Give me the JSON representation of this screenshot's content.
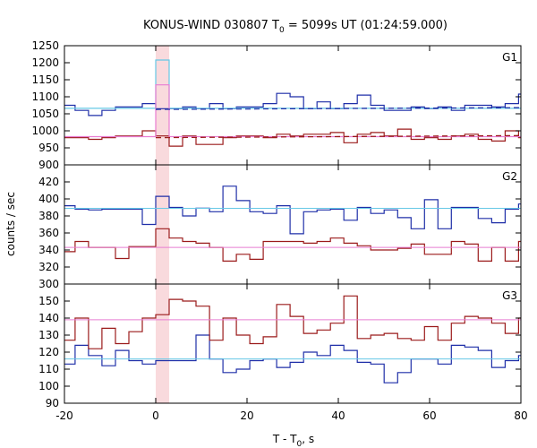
{
  "title": {
    "main": "KONUS-WIND 030807 T",
    "sub": "0",
    "rest": " = 5099s UT (01:24:59.000)"
  },
  "xlabel": {
    "main": "T - T",
    "sub": "0",
    "rest": ", s"
  },
  "ylabel": "counts / sec",
  "colors": {
    "blue_step": "#1f2fa8",
    "red_step": "#9b1b1b",
    "light_blue": "#66c8e6",
    "pink": "#e87dd2",
    "highlight": "#f9dadd",
    "dashed_blue": "#1f2fa8",
    "dashed_red": "#9b1b1b"
  },
  "chart_data": [
    {
      "type": "line",
      "panel": "G1",
      "xlim": [
        -20,
        80
      ],
      "ylim": [
        900,
        1250
      ],
      "yticks": [
        900,
        950,
        1000,
        1050,
        1100,
        1150,
        1200,
        1250
      ],
      "xticks": [
        -20,
        0,
        20,
        40,
        60,
        80
      ],
      "highlight_x": [
        0,
        2.944
      ],
      "bin_edges": [
        -20.608,
        -17.664,
        -14.72,
        -11.776,
        -8.832,
        -5.888,
        -2.944,
        0,
        2.944,
        5.888,
        8.832,
        11.776,
        14.72,
        17.664,
        20.608,
        23.552,
        26.496,
        29.44,
        32.384,
        35.328,
        38.272,
        41.216,
        44.16,
        47.104,
        50.048,
        52.992,
        55.936,
        58.88,
        61.824,
        64.768,
        67.712,
        70.656,
        73.6,
        76.544,
        79.488,
        82.432
      ],
      "series": [
        {
          "name": "",
          "style": "step",
          "color": "blue_step",
          "values": [
            1075,
            1060,
            1045,
            1060,
            1070,
            1070,
            1080,
            1065,
            1065,
            1070,
            1065,
            1080,
            1065,
            1070,
            1070,
            1080,
            1110,
            1100,
            1065,
            1085,
            1065,
            1080,
            1105,
            1075,
            1060,
            1060,
            1070,
            1065,
            1070,
            1060,
            1075,
            1075,
            1070,
            1080,
            1108,
            1035
          ]
        },
        {
          "name": "",
          "style": "step",
          "color": "red_step",
          "values": [
            980,
            980,
            975,
            980,
            985,
            985,
            1000,
            985,
            955,
            985,
            960,
            960,
            980,
            985,
            985,
            980,
            990,
            985,
            990,
            990,
            995,
            965,
            990,
            995,
            985,
            1005,
            975,
            980,
            975,
            985,
            990,
            975,
            970,
            1000,
            980,
            965
          ]
        },
        {
          "name": "",
          "style": "step",
          "color": "light_blue",
          "values": [
            1066,
            1066,
            1066,
            1066,
            1066,
            1066,
            1066,
            1208,
            1066,
            1066,
            1066,
            1066,
            1066,
            1066,
            1066,
            1066,
            1066,
            1066,
            1066,
            1066,
            1066,
            1066,
            1066,
            1066,
            1066,
            1066,
            1066,
            1066,
            1066,
            1066,
            1066,
            1066,
            1066,
            1066,
            1066,
            1066
          ]
        },
        {
          "name": "",
          "style": "step",
          "color": "pink",
          "values": [
            983,
            983,
            983,
            983,
            983,
            983,
            983,
            1135,
            983,
            983,
            983,
            983,
            983,
            983,
            983,
            983,
            983,
            983,
            983,
            983,
            983,
            983,
            983,
            983,
            983,
            983,
            983,
            983,
            983,
            983,
            983,
            983,
            983,
            983,
            983,
            983
          ]
        },
        {
          "name": "",
          "style": "dashed",
          "color": "dashed_blue",
          "x": [
            0,
            80
          ],
          "y": [
            1063,
            1068
          ]
        },
        {
          "name": "",
          "style": "dashed",
          "color": "dashed_red",
          "x": [
            0,
            80
          ],
          "y": [
            980,
            986
          ]
        }
      ]
    },
    {
      "type": "line",
      "panel": "G2",
      "xlim": [
        -20,
        80
      ],
      "ylim": [
        300,
        440
      ],
      "yticks": [
        300,
        320,
        340,
        360,
        380,
        400,
        420
      ],
      "xticks": [
        -20,
        0,
        20,
        40,
        60,
        80
      ],
      "highlight_x": [
        0,
        2.944
      ],
      "bin_edges": [
        -20.608,
        -17.664,
        -14.72,
        -11.776,
        -8.832,
        -5.888,
        -2.944,
        0,
        2.944,
        5.888,
        8.832,
        11.776,
        14.72,
        17.664,
        20.608,
        23.552,
        26.496,
        29.44,
        32.384,
        35.328,
        38.272,
        41.216,
        44.16,
        47.104,
        50.048,
        52.992,
        55.936,
        58.88,
        61.824,
        64.768,
        67.712,
        70.656,
        73.6,
        76.544,
        79.488,
        82.432
      ],
      "series": [
        {
          "name": "",
          "style": "step",
          "color": "blue_step",
          "values": [
            392,
            388,
            387,
            388,
            388,
            388,
            370,
            403,
            390,
            380,
            389,
            385,
            415,
            398,
            385,
            383,
            392,
            359,
            385,
            387,
            388,
            375,
            390,
            383,
            387,
            378,
            365,
            399,
            365,
            390,
            390,
            377,
            372,
            388,
            394,
            385
          ]
        },
        {
          "name": "",
          "style": "step",
          "color": "red_step",
          "values": [
            338,
            350,
            343,
            343,
            330,
            344,
            344,
            365,
            354,
            350,
            348,
            343,
            327,
            335,
            329,
            350,
            350,
            350,
            348,
            350,
            354,
            348,
            345,
            340,
            340,
            342,
            347,
            335,
            335,
            350,
            347,
            327,
            343,
            327,
            350,
            340
          ]
        },
        {
          "name": "",
          "style": "hline",
          "color": "light_blue",
          "y": 389
        },
        {
          "name": "",
          "style": "hline",
          "color": "pink",
          "y": 343
        }
      ]
    },
    {
      "type": "line",
      "panel": "G3",
      "xlim": [
        -20,
        80
      ],
      "ylim": [
        90,
        160
      ],
      "yticks": [
        90,
        100,
        110,
        120,
        130,
        140,
        150
      ],
      "xticks": [
        -20,
        0,
        20,
        40,
        60,
        80
      ],
      "highlight_x": [
        0,
        2.944
      ],
      "bin_edges": [
        -20.608,
        -17.664,
        -14.72,
        -11.776,
        -8.832,
        -5.888,
        -2.944,
        0,
        2.944,
        5.888,
        8.832,
        11.776,
        14.72,
        17.664,
        20.608,
        23.552,
        26.496,
        29.44,
        32.384,
        35.328,
        38.272,
        41.216,
        44.16,
        47.104,
        50.048,
        52.992,
        55.936,
        58.88,
        61.824,
        64.768,
        67.712,
        70.656,
        73.6,
        76.544,
        79.488,
        82.432
      ],
      "series": [
        {
          "name": "",
          "style": "step",
          "color": "blue_step",
          "values": [
            113,
            124,
            118,
            112,
            121,
            115,
            113,
            115,
            115,
            115,
            130,
            116,
            108,
            110,
            115,
            116,
            111,
            114,
            120,
            118,
            124,
            121,
            114,
            113,
            102,
            108,
            116,
            116,
            113,
            124,
            123,
            121,
            111,
            115,
            118,
            117
          ]
        },
        {
          "name": "",
          "style": "step",
          "color": "red_step",
          "values": [
            127,
            140,
            122,
            134,
            125,
            132,
            140,
            142,
            151,
            150,
            147,
            127,
            140,
            130,
            125,
            129,
            148,
            141,
            131,
            133,
            137,
            153,
            128,
            130,
            131,
            128,
            127,
            135,
            127,
            137,
            141,
            140,
            137,
            131,
            140,
            133
          ]
        },
        {
          "name": "",
          "style": "hline",
          "color": "light_blue",
          "y": 116
        },
        {
          "name": "",
          "style": "hline",
          "color": "pink",
          "y": 139
        }
      ]
    }
  ]
}
